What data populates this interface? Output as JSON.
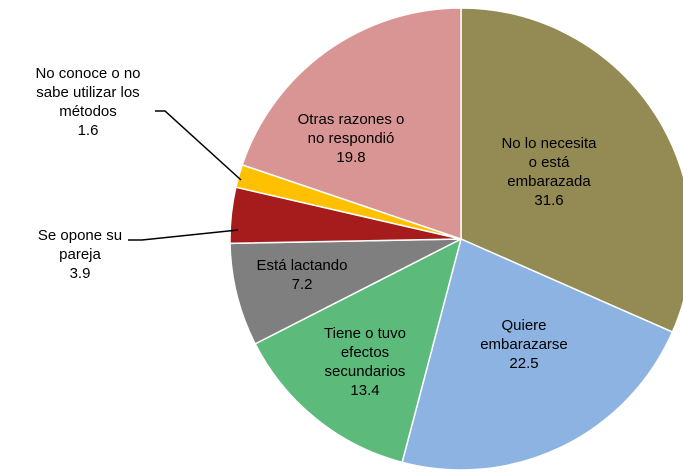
{
  "chart_data": {
    "type": "pie",
    "categories": [
      [
        "No lo necesita",
        "o está",
        "embarazada"
      ],
      [
        "Quiere",
        "embarazarse"
      ],
      [
        "Tiene o tuvo",
        "efectos",
        "secundarios"
      ],
      [
        "Está lactando"
      ],
      [
        "Se opone su",
        "pareja"
      ],
      [
        "No conoce o no",
        "sabe utilizar los",
        "métodos"
      ],
      [
        "Otras razones o",
        "no respondió"
      ]
    ],
    "values": [
      31.6,
      22.5,
      13.4,
      7.2,
      3.9,
      1.6,
      19.8
    ],
    "colors": [
      "#948a54",
      "#8db3e2",
      "#5cbb7a",
      "#7f7f7f",
      "#a61c1c",
      "#ffc000",
      "#d99594"
    ]
  }
}
